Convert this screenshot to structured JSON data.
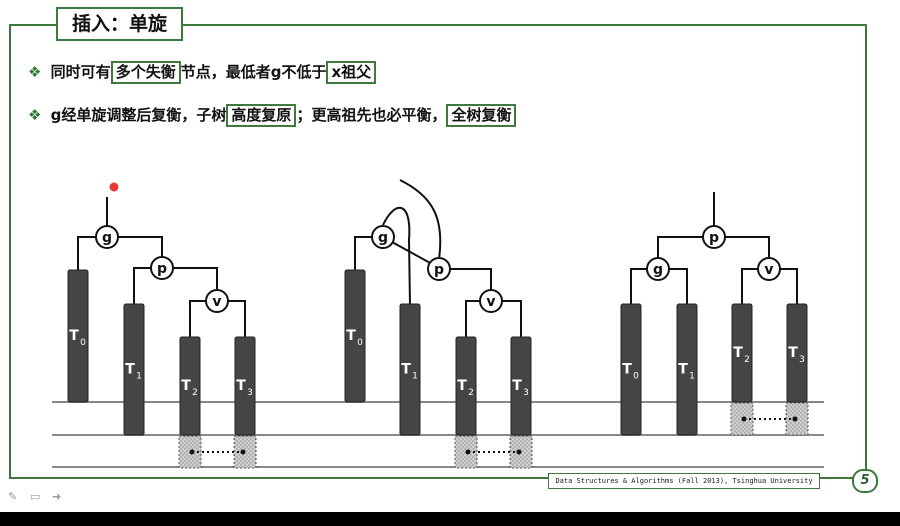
{
  "slide": {
    "title": "插入：单旋",
    "bullet1": {
      "marker": "❖",
      "t1": " 同时可有",
      "box1": "多个失衡",
      "t2": "节点，最低者g不低于",
      "box2": "x祖父"
    },
    "bullet2": {
      "marker": "❖",
      "t1": " g经单旋调整后复衡，子树",
      "box1": "高度复原",
      "t2": "；更高祖先也必平衡，",
      "box2": "全树复衡"
    },
    "footer": "Data Structures & Algorithms (Fall 2013), Tsinghua University",
    "page_number": "5"
  },
  "diagram": {
    "node_labels": [
      "g",
      "p",
      "v"
    ],
    "subtree_labels": {
      "T0": "T",
      "T0_sub": "0",
      "T1": "T",
      "T1_sub": "1",
      "T2": "T",
      "T2_sub": "2",
      "T3": "T",
      "T3_sub": "3"
    }
  },
  "colors": {
    "accent_green": "#3e7a3e",
    "subtree_fill": "#454545",
    "hatch_fill": "#bdbdbd",
    "marker_red": "#e53935"
  },
  "icons": [
    "pen-icon",
    "screen-icon",
    "arrow-icon"
  ]
}
